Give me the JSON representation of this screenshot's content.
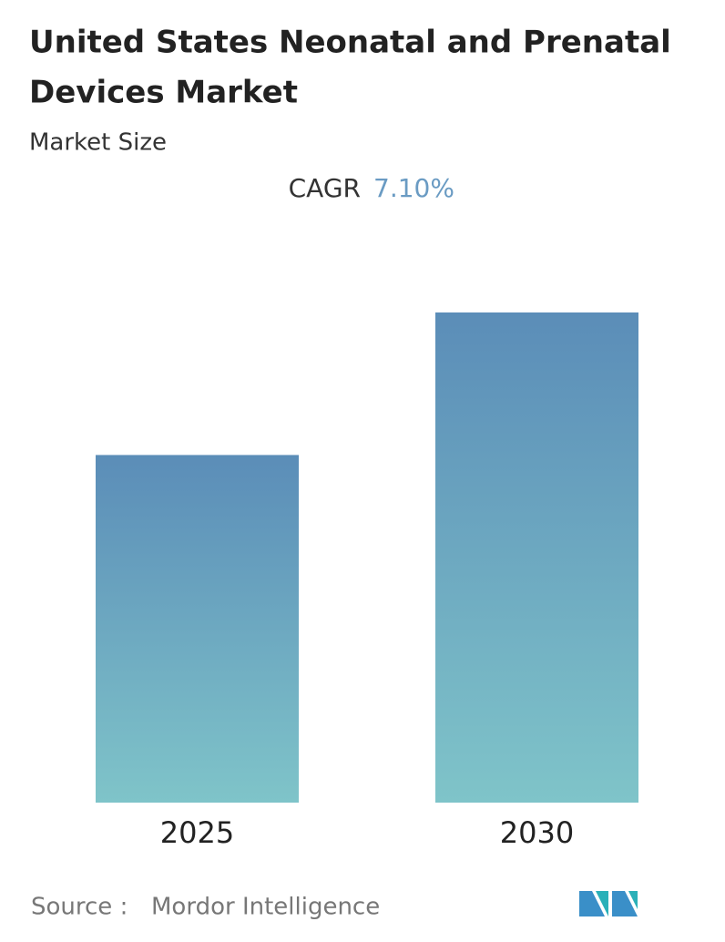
{
  "chart_data": {
    "type": "bar",
    "title": [
      "United States Neonatal and Prenatal",
      "Devices Market"
    ],
    "subtitle": "Market Size",
    "cagr": {
      "label": "CAGR",
      "value": 7.1,
      "value_label": "7.10%"
    },
    "categories": [
      "2025",
      "2030"
    ],
    "values": [
      1.0,
      1.41
    ],
    "color": [
      "#5b8db8",
      "#7fc4c9"
    ],
    "source": {
      "label": "Source :",
      "name": "Mordor Intelligence"
    }
  }
}
